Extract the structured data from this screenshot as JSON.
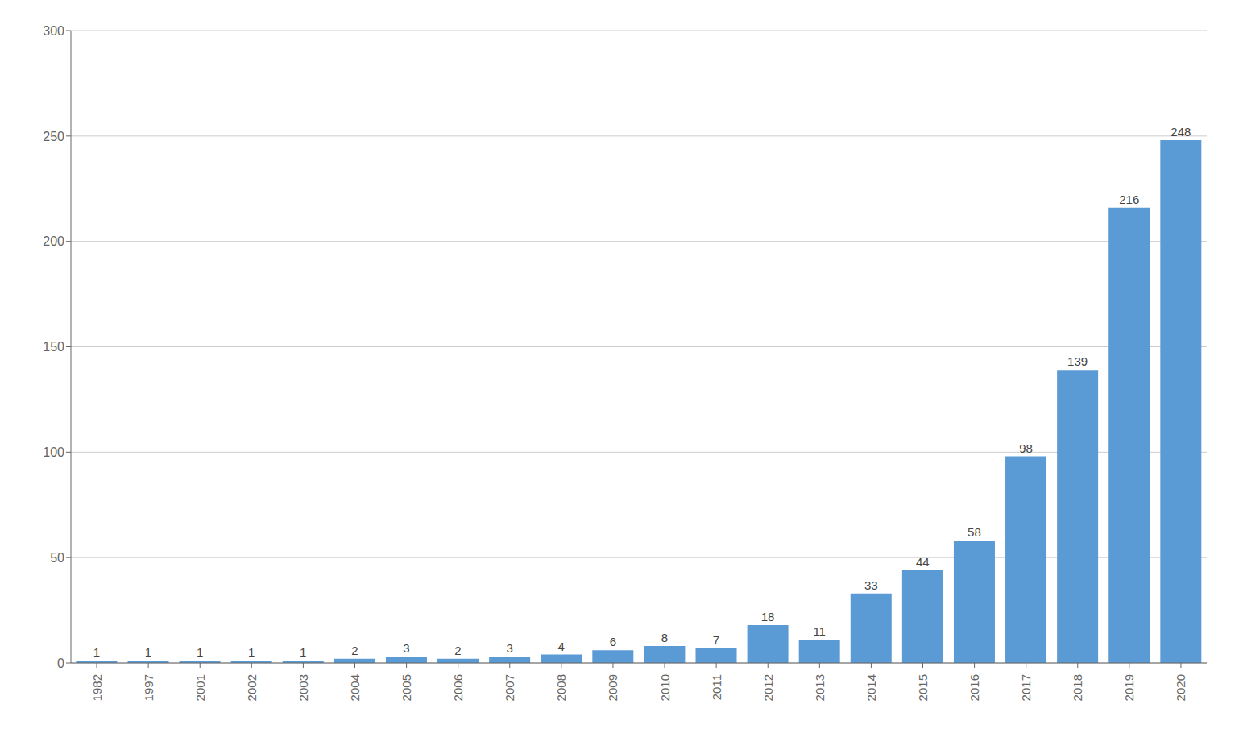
{
  "chart_data": {
    "type": "bar",
    "categories": [
      "1982",
      "1997",
      "2001",
      "2002",
      "2003",
      "2004",
      "2005",
      "2006",
      "2007",
      "2008",
      "2009",
      "2010",
      "2011",
      "2012",
      "2013",
      "2014",
      "2015",
      "2016",
      "2017",
      "2018",
      "2019",
      "2020"
    ],
    "values": [
      1,
      1,
      1,
      1,
      1,
      2,
      3,
      2,
      3,
      4,
      6,
      8,
      7,
      18,
      11,
      33,
      44,
      58,
      98,
      139,
      216,
      248
    ],
    "color": "#5B9BD5",
    "ylim": [
      0,
      300
    ],
    "yticks": [
      0,
      50,
      100,
      150,
      200,
      250,
      300
    ],
    "grid": true,
    "data_labels": true
  }
}
